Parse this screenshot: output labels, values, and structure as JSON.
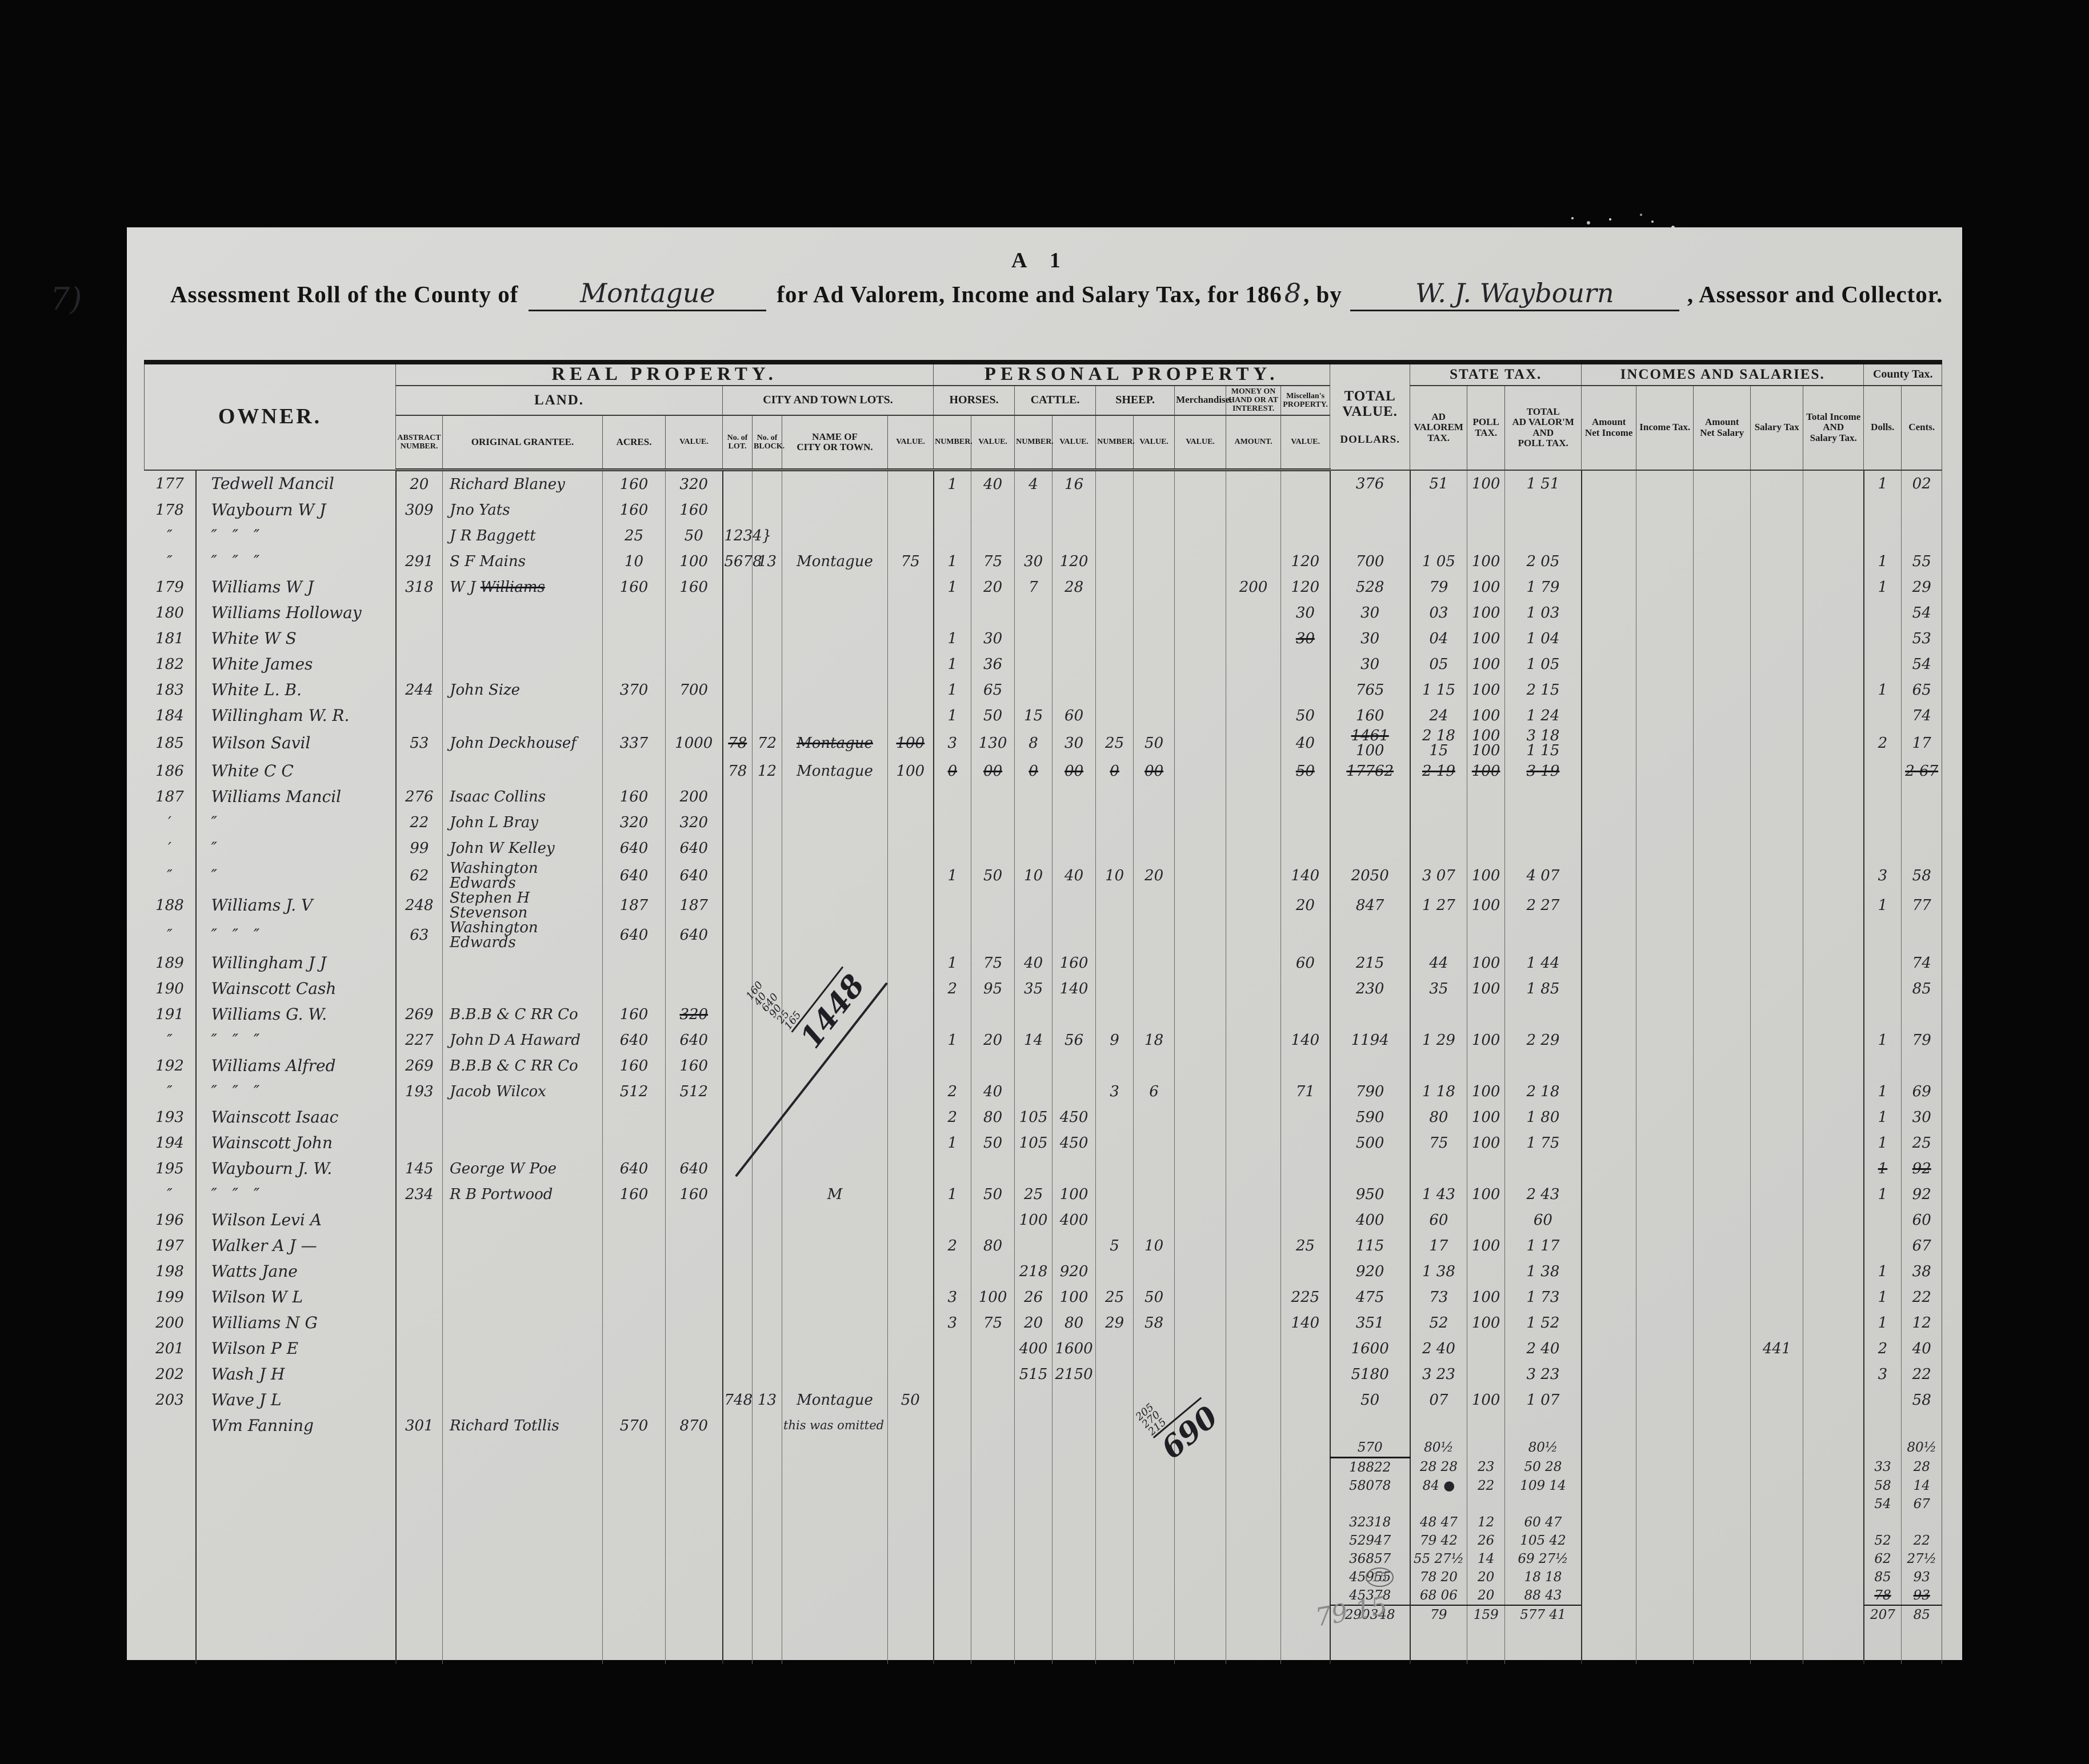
{
  "scan": {
    "margin_note": "7)",
    "corner_mark": "A 1",
    "faint_total": "79 15",
    "circled_note": "15"
  },
  "title": {
    "p1": "Assessment Roll of the County of",
    "county": "Montague",
    "p2": "for Ad Valorem, Income and Salary Tax, for 186",
    "year_digit": "8",
    "p3": ", by",
    "assessor": "W. J. Waybourn",
    "p4": ", Assessor and Collector."
  },
  "header": {
    "owner": "OWNER.",
    "real": "REAL PROPERTY.",
    "personal": "PERSONAL PROPERTY.",
    "land": "LAND.",
    "citylots": "CITY AND TOWN LOTS.",
    "horses": "HORSES.",
    "cattle": "CATTLE.",
    "sheep": "SHEEP.",
    "merch": "Merchandise.",
    "money": "MONEY ON\nHAND OR AT\nINTEREST.",
    "misc": "Miscellan's\nPROPERTY.",
    "total_l1": "TOTAL\nVALUE.",
    "total_l2": "DOLLARS.",
    "state": "STATE TAX.",
    "adval": "AD VALOREM\nTAX.",
    "poll": "POLL\nTAX.",
    "advalpoll": "TOTAL\nAD VALOR'M\nAND\nPOLL TAX.",
    "incomes": "INCOMES AND SALARIES.",
    "netinc": "Amount\nNet Income",
    "inctax": "Income Tax.",
    "netsal": "Amount\nNet Salary",
    "saltax": "Salary Tax",
    "totincsal": "Total Income\nAND\nSalary Tax.",
    "county": "County Tax.",
    "dolls": "Dolls.",
    "cents": "Cents.",
    "abstract": "ABSTRACT\nNUMBER.",
    "grantee": "ORIGINAL GRANTEE.",
    "acres": "ACRES.",
    "value": "VALUE.",
    "nolot": "No. of\nLOT.",
    "noblock": "No. of\nBLOCK.",
    "cityname": "NAME OF\nCITY OR TOWN.",
    "number": "NUMBER.",
    "amount": "AMOUNT."
  },
  "annotations": {
    "sum1448": {
      "stack": "160\n40\n640\n90\n25\n165",
      "result": "1448"
    },
    "sum690": {
      "stack": "205\n270\n215",
      "result": "690"
    }
  },
  "table": {
    "rows": [
      [
        "177",
        "Tedwell Mancil",
        "20",
        "Richard Blaney",
        "160",
        "320",
        "",
        "",
        "",
        "",
        "1",
        "40",
        "4",
        "16",
        "",
        "",
        "",
        "",
        "",
        "376",
        "51",
        "100",
        "1 51",
        "",
        "",
        "",
        "",
        "",
        "1",
        "02"
      ],
      [
        "178",
        "Waybourn W J",
        "309",
        "Jno Yats",
        "160",
        "160"
      ],
      [
        "″",
        "″   ″   ″",
        "",
        "J R Baggett",
        "25",
        "50",
        "1234}"
      ],
      [
        "″",
        "″   ″   ″",
        "291",
        "S F Mains",
        "10",
        "100",
        "5678",
        "13",
        "Montague",
        "75",
        "1",
        "75",
        "30",
        "120",
        "",
        "",
        "",
        "",
        "120",
        "700",
        "1 05",
        "100",
        "2 05",
        "",
        "",
        "",
        "",
        "",
        "1",
        "55"
      ],
      [
        "179",
        "Williams W J",
        "318",
        "W J ~Williams~",
        "160",
        "160",
        "",
        "",
        "",
        "",
        "1",
        "20",
        "7",
        "28",
        "",
        "",
        "",
        "200",
        "120",
        "528",
        "79",
        "100",
        "1 79",
        "",
        "",
        "",
        "",
        "",
        "1",
        "29"
      ],
      [
        "180",
        "Williams Holloway",
        "",
        "",
        "",
        "",
        "",
        "",
        "",
        "",
        "",
        "",
        "",
        "",
        "",
        "",
        "",
        "",
        "30",
        "30",
        "03",
        "100",
        "1 03",
        "",
        "",
        "",
        "",
        "",
        "",
        "54"
      ],
      [
        "181",
        "White W S",
        "",
        "",
        "",
        "",
        "",
        "",
        "",
        "",
        "1",
        "30",
        "",
        "",
        "",
        "",
        "",
        "",
        "~30~",
        "30",
        "04",
        "100",
        "1 04",
        "",
        "",
        "",
        "",
        "",
        "",
        "53"
      ],
      [
        "182",
        "White James",
        "",
        "",
        "",
        "",
        "",
        "",
        "",
        "",
        "1",
        "36",
        "",
        "",
        "",
        "",
        "",
        "",
        "",
        "30",
        "05",
        "100",
        "1 05",
        "",
        "",
        "",
        "",
        "",
        "",
        "54"
      ],
      [
        "183",
        "White L. B.",
        "244",
        "John Size",
        "370",
        "700",
        "",
        "",
        "",
        "",
        "1",
        "65",
        "",
        "",
        "",
        "",
        "",
        "",
        "",
        "765",
        "1 15",
        "100",
        "2 15",
        "",
        "",
        "",
        "",
        "",
        "1",
        "65"
      ],
      [
        "184",
        "Willingham W. R.",
        "",
        "",
        "",
        "",
        "",
        "",
        "",
        "",
        "1",
        "50",
        "15",
        "60",
        "",
        "",
        "",
        "",
        "50",
        "160",
        "24",
        "100",
        "1 24",
        "",
        "",
        "",
        "",
        "",
        "",
        "74"
      ],
      [
        "185",
        "Wilson Savil",
        "53",
        "John Deckhousef",
        "337",
        "1000",
        "~78~",
        "72",
        "~Montague~",
        "~100~",
        "3",
        "130",
        "8",
        "30",
        "25",
        "50",
        "",
        "",
        "40",
        "~1461~\n100",
        "2 18\n15",
        "100\n100",
        "3 18\n1 15",
        "",
        "",
        "",
        "",
        "",
        "2",
        "17"
      ],
      [
        "186",
        "White C C",
        "",
        "",
        "",
        "",
        "78",
        "12",
        "Montague",
        "100",
        "~0~",
        "~00~",
        "~0~",
        "~00~",
        "~0~",
        "~00~",
        "",
        "",
        "~50~",
        "~17762~",
        "~2 19~",
        "~100~",
        "~3 19~",
        "",
        "",
        "",
        "",
        "",
        "",
        "~2 67~"
      ],
      [
        "187",
        "Williams Mancil",
        "276",
        "Isaac Collins",
        "160",
        "200"
      ],
      [
        "′",
        "″",
        "22",
        "John L Bray",
        "320",
        "320"
      ],
      [
        "′",
        "″",
        "99",
        "John W Kelley",
        "640",
        "640"
      ],
      [
        "″",
        "″",
        "62",
        "Washington Edwards",
        "640",
        "640",
        "",
        "",
        "",
        "",
        "1",
        "50",
        "10",
        "40",
        "10",
        "20",
        "",
        "",
        "140",
        "2050",
        "3 07",
        "100",
        "4 07",
        "",
        "",
        "",
        "",
        "",
        "3",
        "58"
      ],
      [
        "188",
        "Williams J. V",
        "248",
        "Stephen H Stevenson",
        "187",
        "187",
        "",
        "",
        "",
        "",
        "",
        "",
        "",
        "",
        "",
        "",
        "",
        "",
        "20",
        "847",
        "1 27",
        "100",
        "2 27",
        "",
        "",
        "",
        "",
        "",
        "1",
        "77"
      ],
      [
        "″",
        "″   ″   ″",
        "63",
        "Washington Edwards",
        "640",
        "640"
      ],
      [
        "189",
        "Willingham J J",
        "",
        "",
        "",
        "",
        "",
        "",
        "",
        "",
        "1",
        "75",
        "40",
        "160",
        "",
        "",
        "",
        "",
        "60",
        "215",
        "44",
        "100",
        "1 44",
        "",
        "",
        "",
        "",
        "",
        "",
        "74"
      ],
      [
        "190",
        "Wainscott Cash",
        "",
        "",
        "",
        "",
        "",
        "",
        "",
        "",
        "2",
        "95",
        "35",
        "140",
        "",
        "",
        "",
        "",
        "",
        "230",
        "35",
        "100",
        "1 85",
        "",
        "",
        "",
        "",
        "",
        "",
        "85"
      ],
      [
        "191",
        "Williams G. W.",
        "269",
        "B.B.B & C RR Co",
        "160",
        "~320~"
      ],
      [
        "″",
        "″   ″   ″",
        "227",
        "John D A Haward",
        "640",
        "640",
        "",
        "",
        "",
        "",
        "1",
        "20",
        "14",
        "56",
        "9",
        "18",
        "",
        "",
        "140",
        "1194",
        "1 29",
        "100",
        "2 29",
        "",
        "",
        "",
        "",
        "",
        "1",
        "79"
      ],
      [
        "192",
        "Williams Alfred",
        "269",
        "B.B.B & C RR Co",
        "160",
        "160"
      ],
      [
        "″",
        "″   ″   ″",
        "193",
        "Jacob Wilcox",
        "512",
        "512",
        "",
        "",
        "",
        "",
        "2",
        "40",
        "",
        "",
        "3",
        "6",
        "",
        "",
        "71",
        "790",
        "1 18",
        "100",
        "2 18",
        "",
        "",
        "",
        "",
        "",
        "1",
        "69"
      ],
      [
        "193",
        "Wainscott Isaac",
        "",
        "",
        "",
        "",
        "",
        "",
        "",
        "",
        "2",
        "80",
        "105",
        "450",
        "",
        "",
        "",
        "",
        "",
        "590",
        "80",
        "100",
        "1 80",
        "",
        "",
        "",
        "",
        "",
        "1",
        "30"
      ],
      [
        "194",
        "Wainscott John",
        "",
        "",
        "",
        "",
        "",
        "",
        "",
        "",
        "1",
        "50",
        "105",
        "450",
        "",
        "",
        "",
        "",
        "",
        "500",
        "75",
        "100",
        "1 75",
        "",
        "",
        "",
        "",
        "",
        "1",
        "25"
      ],
      [
        "195",
        "Waybourn J. W.",
        "145",
        "George W Poe",
        "640",
        "640",
        "",
        "",
        "",
        "",
        "",
        "",
        "",
        "",
        "",
        "",
        "",
        "",
        "",
        "",
        "",
        "",
        "",
        "",
        "",
        "",
        "",
        "",
        "~1~",
        "~92~"
      ],
      [
        "″",
        "″   ″   ″",
        "234",
        "R B Portwood",
        "160",
        "160",
        "",
        "",
        "M",
        "",
        "1",
        "50",
        "25",
        "100",
        "",
        "",
        "",
        "",
        "",
        "950",
        "1 43",
        "100",
        "2 43",
        "",
        "",
        "",
        "",
        "",
        "1",
        "92"
      ],
      [
        "196",
        "Wilson Levi A",
        "",
        "",
        "",
        "",
        "",
        "",
        "",
        "",
        "",
        "",
        "100",
        "400",
        "",
        "",
        "",
        "",
        "",
        "400",
        "60",
        "",
        "60",
        "",
        "",
        "",
        "",
        "",
        "",
        "60"
      ],
      [
        "197",
        "Walker A J —",
        "",
        "",
        "",
        "",
        "",
        "",
        "",
        "",
        "2",
        "80",
        "",
        "",
        "5",
        "10",
        "",
        "",
        "25",
        "115",
        "17",
        "100",
        "1 17",
        "",
        "",
        "",
        "",
        "",
        "",
        "67"
      ],
      [
        "198",
        "Watts Jane",
        "",
        "",
        "",
        "",
        "",
        "",
        "",
        "",
        "",
        "",
        "218",
        "920",
        "",
        "",
        "",
        "",
        "",
        "920",
        "1 38",
        "",
        "1 38",
        "",
        "",
        "",
        "",
        "",
        "1",
        "38"
      ],
      [
        "199",
        "Wilson W L",
        "",
        "",
        "",
        "",
        "",
        "",
        "",
        "",
        "3",
        "100",
        "26",
        "100",
        "25",
        "50",
        "",
        "",
        "225",
        "475",
        "73",
        "100",
        "1 73",
        "",
        "",
        "",
        "",
        "",
        "1",
        "22"
      ],
      [
        "200",
        "Williams N G",
        "",
        "",
        "",
        "",
        "",
        "",
        "",
        "",
        "3",
        "75",
        "20",
        "80",
        "29",
        "58",
        "",
        "",
        "140",
        "351",
        "52",
        "100",
        "1 52",
        "",
        "",
        "",
        "",
        "",
        "1",
        "12"
      ],
      [
        "201",
        "Wilson P E",
        "",
        "",
        "",
        "",
        "",
        "",
        "",
        "",
        "",
        "",
        "400",
        "1600",
        "",
        "",
        "",
        "",
        "",
        "1600",
        "2 40",
        "",
        "2 40",
        "",
        "",
        "",
        "441",
        "",
        "2",
        "40"
      ],
      [
        "202",
        "Wash J H",
        "",
        "",
        "",
        "",
        "",
        "",
        "",
        "",
        "",
        "",
        "515",
        "2150",
        "",
        "",
        "",
        "",
        "",
        "5180",
        "3 23",
        "",
        "3 23",
        "",
        "",
        "",
        "",
        "",
        "3",
        "22"
      ],
      [
        "203",
        "Wave J L",
        "",
        "",
        "",
        "",
        "748",
        "13",
        "Montague",
        "50",
        "",
        "",
        "",
        "",
        "",
        "",
        "",
        "",
        "",
        "50",
        "07",
        "100",
        "1 07",
        "",
        "",
        "",
        "",
        "",
        "",
        "58"
      ],
      {
        "c": [
          "",
          "Wm Fanning",
          "301",
          "Richard Totllis",
          "570",
          "870",
          "",
          "",
          "this was omitted"
        ],
        "k": "fanning"
      },
      {
        "c": [
          "",
          "",
          "",
          "",
          "",
          "",
          "",
          "",
          "",
          "",
          "",
          "",
          "",
          "",
          "",
          "",
          "",
          "",
          "",
          "570",
          "80½",
          "",
          "80½",
          "",
          "",
          "",
          "",
          "",
          "",
          "80½"
        ],
        "k": "t t0"
      },
      {
        "c": [
          "",
          "",
          "",
          "",
          "",
          "",
          "",
          "",
          "",
          "",
          "",
          "",
          "",
          "",
          "",
          "",
          "",
          "",
          "",
          "18822",
          "28 28",
          "23",
          "50 28",
          "",
          "",
          "",
          "",
          "",
          "33",
          "28"
        ],
        "k": "t"
      },
      {
        "c": [
          "",
          "",
          "",
          "",
          "",
          "",
          "",
          "",
          "",
          "",
          "",
          "",
          "",
          "",
          "",
          "",
          "",
          "",
          "",
          "58078",
          "84 ●",
          "22",
          "109 14",
          "",
          "",
          "",
          "",
          "",
          "58",
          "14"
        ],
        "k": "t"
      },
      {
        "c": [
          "",
          "",
          "",
          "",
          "",
          "",
          "",
          "",
          "",
          "",
          "",
          "",
          "",
          "",
          "",
          "",
          "",
          "",
          "",
          "",
          "",
          "",
          "",
          "",
          "",
          "",
          "",
          "",
          "54",
          "67"
        ],
        "k": "t"
      },
      {
        "c": [
          "",
          "",
          "",
          "",
          "",
          "",
          "",
          "",
          "",
          "",
          "",
          "",
          "",
          "",
          "",
          "",
          "",
          "",
          "",
          "32318",
          "48 47",
          "12",
          "60 47"
        ],
        "k": "t"
      },
      {
        "c": [
          "",
          "",
          "",
          "",
          "",
          "",
          "",
          "",
          "",
          "",
          "",
          "",
          "",
          "",
          "",
          "",
          "",
          "",
          "",
          "52947",
          "79 42",
          "26",
          "105 42",
          "",
          "",
          "",
          "",
          "",
          "52",
          "22"
        ],
        "k": "t"
      },
      {
        "c": [
          "",
          "",
          "",
          "",
          "",
          "",
          "",
          "",
          "",
          "",
          "",
          "",
          "",
          "",
          "",
          "",
          "",
          "",
          "",
          "36857",
          "55 27½",
          "14",
          "69 27½",
          "",
          "",
          "",
          "",
          "",
          "62",
          "27½"
        ],
        "k": "t"
      },
      {
        "c": [
          "",
          "",
          "",
          "",
          "",
          "",
          "",
          "",
          "",
          "",
          "",
          "",
          "",
          "",
          "",
          "",
          "",
          "",
          "",
          "45955",
          "78 20",
          "20",
          "18 18",
          "",
          "",
          "",
          "",
          "",
          "85",
          "93"
        ],
        "k": "t"
      },
      {
        "c": [
          "",
          "",
          "",
          "",
          "",
          "",
          "",
          "",
          "",
          "",
          "",
          "",
          "",
          "",
          "",
          "",
          "",
          "",
          "",
          "45378",
          "68 06",
          "20",
          "88 43",
          "",
          "",
          "",
          "",
          "",
          "~78~",
          "~93~"
        ],
        "k": "t"
      },
      {
        "c": [
          "",
          "",
          "",
          "",
          "",
          "",
          "",
          "",
          "",
          "",
          "",
          "",
          "",
          "",
          "",
          "",
          "",
          "",
          "",
          "290348",
          "79",
          "159",
          "577 41",
          "",
          "",
          "",
          "",
          "",
          "207",
          "85"
        ],
        "k": "t sum"
      },
      {
        "c": [],
        "k": "filler"
      }
    ]
  }
}
